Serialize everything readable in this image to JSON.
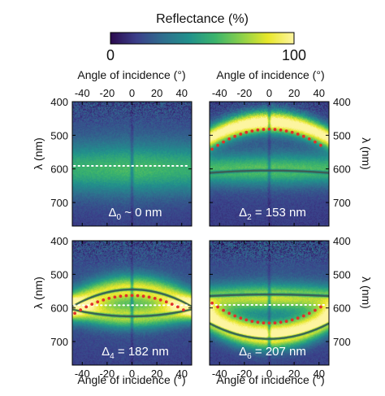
{
  "colorbar": {
    "title": "Reflectance (%)",
    "min_label": "0",
    "max_label": "100",
    "range": [
      0,
      100
    ],
    "stops": [
      "#2b0a4e",
      "#3b3f8a",
      "#2f6e8e",
      "#21918c",
      "#3bb46c",
      "#8bd04a",
      "#e8e72a",
      "#fdf5a0"
    ]
  },
  "top_axis_label": "Angle of incidence (°)",
  "bottom_axis_label": "Angle of incidence (°)",
  "left_axis_label": "λ (nm)",
  "right_axis_label": "λ (nm)",
  "chart_data": [
    {
      "type": "heatmap",
      "annotation": "Δ0 ~ 0 nm",
      "annotation_parts": [
        "Δ",
        "0",
        " ~ 0 nm"
      ],
      "xlim": [
        -48,
        48
      ],
      "ylim": [
        400,
        770
      ],
      "xticks": [
        -40,
        -20,
        0,
        20,
        40
      ],
      "yticks": [
        400,
        500,
        600,
        700
      ],
      "bands": [
        {
          "kind": "broad",
          "center": 600,
          "curvature": 0,
          "width": 70,
          "amp": 0.38
        }
      ],
      "dark_lines": [],
      "dotted_white": 591,
      "dotted_red": null,
      "bg_amp": 0.22,
      "noise_top": 0.25
    },
    {
      "type": "heatmap",
      "annotation": "Δ2 = 153 nm",
      "annotation_parts": [
        "Δ",
        "2",
        " = 153 nm"
      ],
      "xlim": [
        -48,
        48
      ],
      "ylim": [
        400,
        770
      ],
      "xticks": [
        -40,
        -20,
        0,
        20,
        40
      ],
      "yticks": [
        400,
        500,
        600,
        700
      ],
      "bands": [
        {
          "kind": "bright",
          "center": 460,
          "curvature": 0.021,
          "width": 32,
          "amp": 0.95
        },
        {
          "kind": "broad",
          "center": 602,
          "curvature": 0,
          "width": 45,
          "amp": 0.45
        }
      ],
      "dark_lines": [
        {
          "center": 605,
          "curvature": 0.003
        }
      ],
      "dotted_white": null,
      "dotted_red": {
        "center": 482,
        "curvature": 0.028
      },
      "bg_amp": 0.2,
      "noise_top": 0.15
    },
    {
      "type": "heatmap",
      "annotation": "Δ4 = 182 nm",
      "annotation_parts": [
        "Δ",
        "4",
        " = 182 nm"
      ],
      "xlim": [
        -48,
        48
      ],
      "ylim": [
        400,
        770
      ],
      "xticks": [
        -40,
        -20,
        0,
        20,
        40
      ],
      "yticks": [
        400,
        500,
        600,
        700
      ],
      "bands": [
        {
          "kind": "bright",
          "center": 545,
          "curvature": 0.02,
          "width": 40,
          "amp": 0.7
        },
        {
          "kind": "bright",
          "center": 625,
          "curvature": -0.01,
          "width": 35,
          "amp": 0.6
        }
      ],
      "dark_lines": [
        {
          "center": 545,
          "curvature": 0.022
        },
        {
          "center": 625,
          "curvature": -0.009
        }
      ],
      "dotted_white": 592,
      "dotted_red": {
        "center": 563,
        "curvature": 0.025
      },
      "bg_amp": 0.22,
      "noise_top": 0.3
    },
    {
      "type": "heatmap",
      "annotation": "Δ6 = 207 nm",
      "annotation_parts": [
        "Δ",
        "6",
        " = 207 nm"
      ],
      "xlim": [
        -48,
        48
      ],
      "ylim": [
        400,
        770
      ],
      "xticks": [
        -40,
        -20,
        0,
        20,
        40
      ],
      "yticks": [
        400,
        500,
        600,
        700
      ],
      "bands": [
        {
          "kind": "bright",
          "center": 570,
          "curvature": 0.002,
          "width": 38,
          "amp": 0.6
        },
        {
          "kind": "bright",
          "center": 680,
          "curvature": -0.022,
          "width": 40,
          "amp": 0.92
        }
      ],
      "dark_lines": [
        {
          "center": 560,
          "curvature": 0.002
        },
        {
          "center": 692,
          "curvature": -0.02
        }
      ],
      "dotted_white": 591,
      "dotted_red": {
        "center": 645,
        "curvature": -0.028
      },
      "bg_amp": 0.22,
      "noise_top": 0.4
    }
  ]
}
